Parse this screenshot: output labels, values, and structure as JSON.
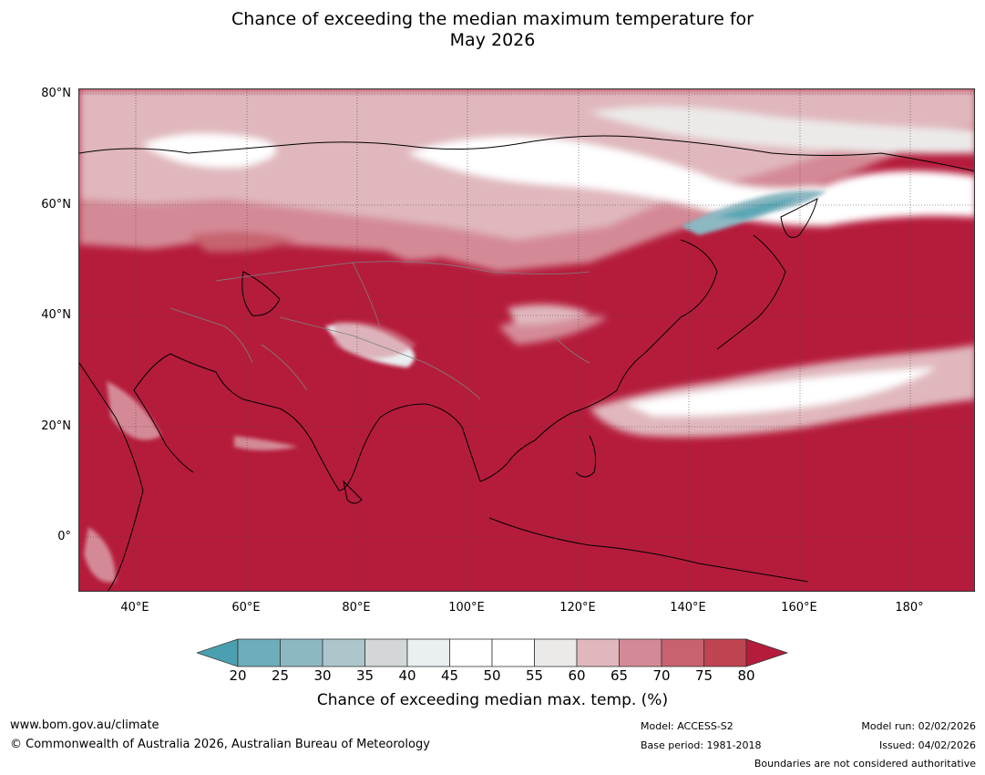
{
  "title": {
    "line1": "Chance of exceeding the median maximum temperature for",
    "line2": "May 2026"
  },
  "map": {
    "lat_labels": [
      "80°N",
      "60°N",
      "40°N",
      "20°N",
      "0°"
    ],
    "lon_labels": [
      "40°E",
      "60°E",
      "80°E",
      "100°E",
      "120°E",
      "140°E",
      "160°E",
      "180°"
    ],
    "dominant_color": "#b51c3c",
    "cool_color": "#5aa7b5"
  },
  "colorbar": {
    "ticks": [
      "20",
      "25",
      "30",
      "35",
      "40",
      "45",
      "50",
      "55",
      "60",
      "65",
      "70",
      "75",
      "80"
    ],
    "colors": [
      "#4aa0b0",
      "#6eadbb",
      "#8cb8c2",
      "#acc6cc",
      "#d3d7d8",
      "#eaf0f2",
      "#ffffff",
      "#ffffff",
      "#eceae9",
      "#e0b7bd",
      "#d48a96",
      "#c7636f",
      "#be4451",
      "#b51c3c"
    ],
    "label": "Chance of exceeding median max. temp. (%)"
  },
  "footer": {
    "url": "www.bom.gov.au/climate",
    "copyright": "© Commonwealth of Australia 2026, Australian Bureau of Meteorology",
    "model": "Model: ACCESS-S2",
    "base_period": "Base period: 1981-2018",
    "model_run": "Model run: 02/02/2026",
    "issued": "Issued: 04/02/2026",
    "disclaimer": "Boundaries are not considered authoritative"
  }
}
